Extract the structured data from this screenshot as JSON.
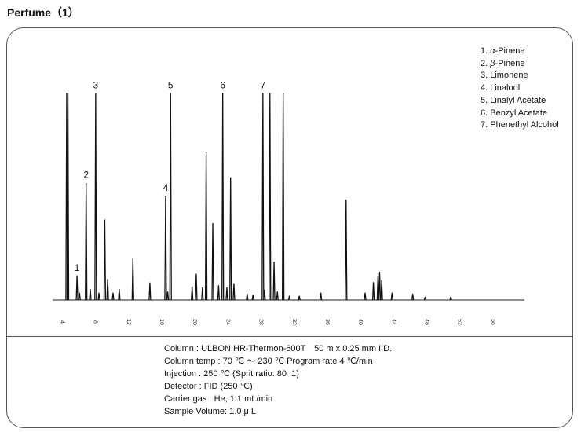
{
  "title": "Perfume（1）",
  "chart_data": {
    "type": "line",
    "xlim": [
      3.0,
      60.0
    ],
    "ylim": [
      0,
      100
    ],
    "ticks": [
      4,
      8,
      12,
      16,
      20,
      24,
      28,
      32,
      36,
      40,
      44,
      48,
      52,
      56
    ],
    "tick_labels": [
      "4",
      "8",
      "12",
      "16",
      "20",
      "24",
      "28",
      "32",
      "36",
      "40",
      "44",
      "48",
      "52",
      "56"
    ],
    "peaks": [
      {
        "rt": 4.7,
        "height": 98.7
      },
      {
        "rt": 4.85,
        "height": 98.7
      },
      {
        "rt": 5.95,
        "height": 11.7
      },
      {
        "rt": 6.25,
        "height": 3.5
      },
      {
        "rt": 7.05,
        "height": 55.9
      },
      {
        "rt": 7.55,
        "height": 5.2
      },
      {
        "rt": 8.2,
        "height": 98.7
      },
      {
        "rt": 8.6,
        "height": 3.5
      },
      {
        "rt": 9.3,
        "height": 38.4
      },
      {
        "rt": 9.65,
        "height": 10.0
      },
      {
        "rt": 10.3,
        "height": 3.5
      },
      {
        "rt": 11.05,
        "height": 5.2
      },
      {
        "rt": 12.7,
        "height": 20.1
      },
      {
        "rt": 14.75,
        "height": 8.3
      },
      {
        "rt": 16.65,
        "height": 49.8
      },
      {
        "rt": 16.9,
        "height": 4.0
      },
      {
        "rt": 17.25,
        "height": 98.7
      },
      {
        "rt": 19.85,
        "height": 6.5
      },
      {
        "rt": 20.35,
        "height": 12.5
      },
      {
        "rt": 21.1,
        "height": 6.0
      },
      {
        "rt": 21.55,
        "height": 70.7
      },
      {
        "rt": 22.35,
        "height": 36.7
      },
      {
        "rt": 23.05,
        "height": 7.0
      },
      {
        "rt": 23.55,
        "height": 98.7
      },
      {
        "rt": 24.05,
        "height": 6.0
      },
      {
        "rt": 24.5,
        "height": 58.5
      },
      {
        "rt": 24.9,
        "height": 8.0
      },
      {
        "rt": 26.5,
        "height": 3.0
      },
      {
        "rt": 27.2,
        "height": 2.5
      },
      {
        "rt": 28.4,
        "height": 98.7
      },
      {
        "rt": 28.6,
        "height": 5.0
      },
      {
        "rt": 29.25,
        "height": 98.7
      },
      {
        "rt": 29.75,
        "height": 18.3
      },
      {
        "rt": 30.15,
        "height": 4.0
      },
      {
        "rt": 30.85,
        "height": 98.7
      },
      {
        "rt": 31.6,
        "height": 2.0
      },
      {
        "rt": 32.8,
        "height": 2.0
      },
      {
        "rt": 35.4,
        "height": 3.5
      },
      {
        "rt": 38.45,
        "height": 48.0
      },
      {
        "rt": 40.75,
        "height": 3.5
      },
      {
        "rt": 41.75,
        "height": 8.5
      },
      {
        "rt": 42.3,
        "height": 11.5
      },
      {
        "rt": 42.5,
        "height": 13.5
      },
      {
        "rt": 42.75,
        "height": 9.5
      },
      {
        "rt": 44.0,
        "height": 3.5
      },
      {
        "rt": 46.5,
        "height": 3.0
      },
      {
        "rt": 48.0,
        "height": 1.5
      },
      {
        "rt": 51.1,
        "height": 1.5
      }
    ],
    "peak_labels": [
      {
        "label": "1",
        "rt": 5.95,
        "height": 11.7
      },
      {
        "label": "2",
        "rt": 7.05,
        "height": 55.9
      },
      {
        "label": "3",
        "rt": 8.2,
        "height": 98.7
      },
      {
        "label": "4",
        "rt": 16.65,
        "height": 49.8
      },
      {
        "label": "5",
        "rt": 17.25,
        "height": 98.7
      },
      {
        "label": "6",
        "rt": 23.55,
        "height": 98.7
      },
      {
        "label": "7",
        "rt": 28.4,
        "height": 98.7
      }
    ]
  },
  "legend": [
    {
      "num": "1.",
      "greek": "α",
      "name": "-Pinene"
    },
    {
      "num": "2.",
      "greek": "β",
      "name": "-Pinene"
    },
    {
      "num": "3.",
      "greek": "",
      "name": "Limonene"
    },
    {
      "num": "4.",
      "greek": "",
      "name": "Linalool"
    },
    {
      "num": "5.",
      "greek": "",
      "name": "Linalyl Acetate"
    },
    {
      "num": "6.",
      "greek": "",
      "name": "Benzyl Acetate"
    },
    {
      "num": "7.",
      "greek": "",
      "name": "Phenethyl Alcohol"
    }
  ],
  "conditions": [
    "Column : ULBON HR-Thermon-600T　50 m x 0.25 mm I.D.",
    "Column temp : 70 ℃ ～ 230 ℃ Program rate 4 ℃/min",
    "Injection : 250 ℃ (Sprit ratio: 80 :1)",
    "Detector : FID (250 ℃)",
    "Carrier gas : He, 1.1 mL/min",
    "Sample Volume: 1.0 μ L"
  ]
}
